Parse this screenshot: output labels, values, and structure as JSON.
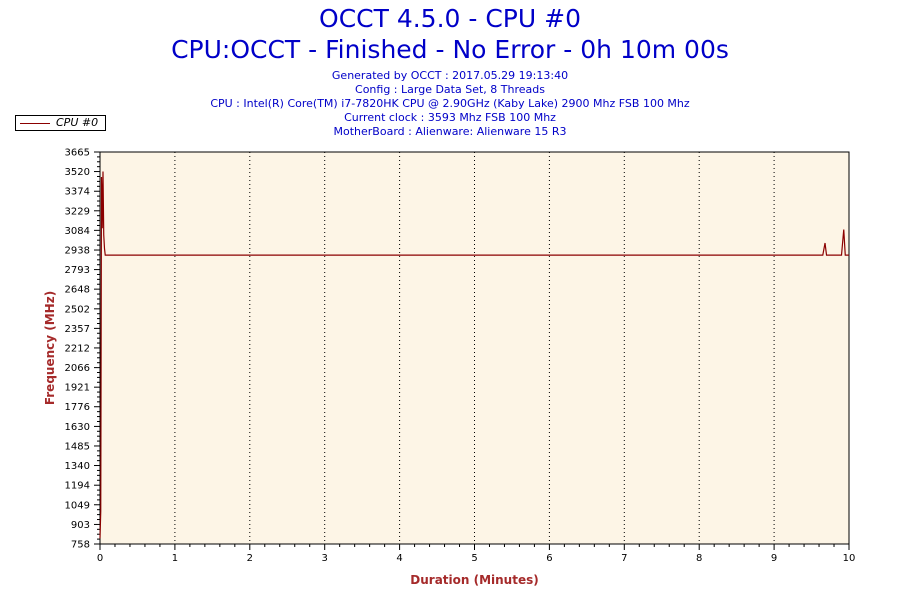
{
  "header": {
    "title": "OCCT 4.5.0 - CPU #0",
    "subtitle": "CPU:OCCT - Finished - No Error - 0h 10m 00s",
    "generated": "Generated by OCCT : 2017.05.29 19:13:40",
    "config": "Config : Large Data Set, 8 Threads",
    "cpu": "CPU : Intel(R) Core(TM) i7-7820HK CPU @ 2.90GHz (Kaby Lake) 2900 Mhz FSB 100 Mhz",
    "clock": "Current clock : 3593 Mhz FSB 100 Mhz",
    "motherboard": "MotherBoard : Alienware: Alienware 15 R3"
  },
  "legend": {
    "label": "CPU #0",
    "placement": "top-left"
  },
  "colors": {
    "series": "#8b0000",
    "plot_background": "#fdf5e6",
    "title": "#0000c8",
    "axis_label": "#a52a2a"
  },
  "chart_data": {
    "type": "line",
    "xlabel": "Duration (Minutes)",
    "ylabel": "Frequency (MHz)",
    "xlim": [
      0,
      10
    ],
    "ylim": [
      758,
      3665
    ],
    "xticks": [
      "0",
      "1",
      "2",
      "3",
      "4",
      "5",
      "6",
      "7",
      "8",
      "9",
      "10"
    ],
    "yticks": [
      "758",
      "903",
      "1049",
      "1194",
      "1340",
      "1485",
      "1630",
      "1776",
      "1921",
      "2066",
      "2212",
      "2357",
      "2502",
      "2648",
      "2793",
      "2938",
      "3084",
      "3229",
      "3374",
      "3520",
      "3665"
    ],
    "grid": true,
    "series": [
      {
        "name": "CPU #0",
        "x": [
          0,
          0.01,
          0.02,
          0.03,
          0.04,
          0.05,
          0.06,
          0.07,
          0.08,
          0.2,
          1,
          2,
          3,
          4,
          5,
          6,
          7,
          8,
          9,
          9.65,
          9.68,
          9.7,
          9.72,
          9.75,
          9.9,
          9.93,
          9.95,
          9.97,
          10
        ],
        "y": [
          800,
          1000,
          3480,
          3100,
          3520,
          3050,
          2950,
          2900,
          2900,
          2900,
          2900,
          2900,
          2900,
          2900,
          2900,
          2900,
          2900,
          2900,
          2900,
          2900,
          2990,
          2900,
          2900,
          2900,
          2900,
          3090,
          2900,
          2900,
          2900
        ]
      }
    ]
  }
}
